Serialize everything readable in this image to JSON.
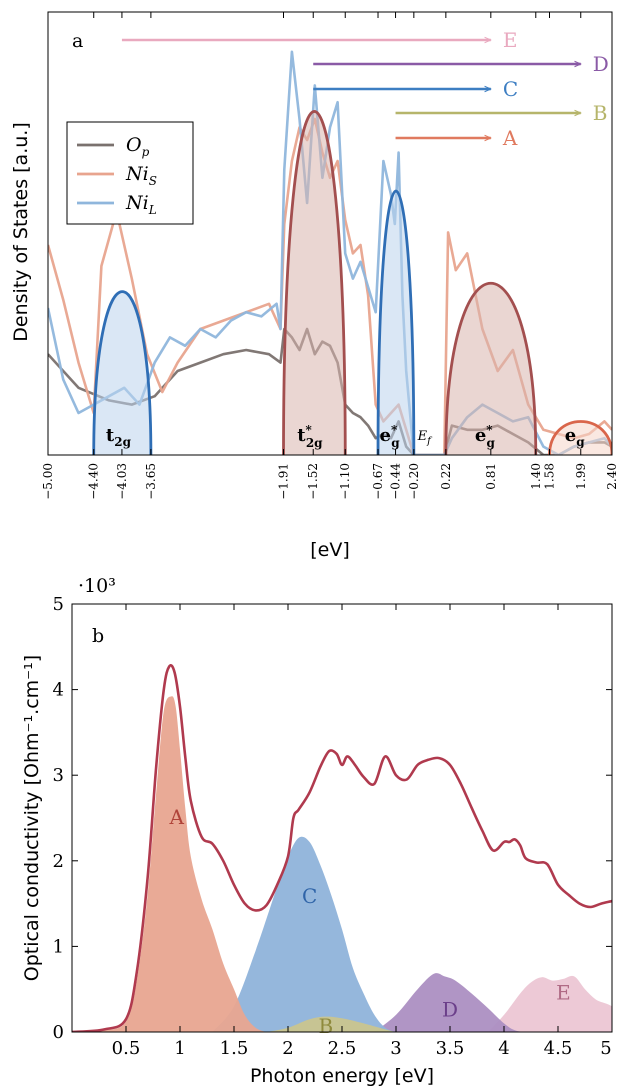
{
  "chart_data": [
    {
      "type": "area",
      "panel_label": "a",
      "xlabel": "[eV]",
      "ylabel": "Density of States [a.u.]",
      "xlim": [
        -5.0,
        2.4
      ],
      "y_ticks_shown": false,
      "grid": false,
      "legend": {
        "position": "left",
        "entries": [
          {
            "name": "O_p",
            "color": "#7a716e"
          },
          {
            "name": "Ni_S",
            "color": "#e8a48e"
          },
          {
            "name": "Ni_L",
            "color": "#8fb6dc"
          }
        ]
      },
      "x_tick_labels": [
        "−5.00",
        "−4.40",
        "−4.03",
        "−3.65",
        "−1.91",
        "−1.52",
        "−1.10",
        "−0.67",
        "−0.44",
        "−0.20",
        "0.22",
        "0.81",
        "1.40",
        "1.58",
        "1.99",
        "2.40"
      ],
      "x_tick_values": [
        -5.0,
        -4.4,
        -4.03,
        -3.65,
        -1.91,
        -1.52,
        -1.1,
        -0.67,
        -0.44,
        -0.2,
        0.22,
        0.81,
        1.4,
        1.58,
        1.99,
        2.4
      ],
      "series": [
        {
          "name": "O_p",
          "color": "#7a716e",
          "x": [
            -5.0,
            -4.6,
            -4.2,
            -3.9,
            -3.6,
            -3.3,
            -3.0,
            -2.7,
            -2.4,
            -2.1,
            -1.95,
            -1.9,
            -1.8,
            -1.7,
            -1.6,
            -1.5,
            -1.4,
            -1.3,
            -1.2,
            -1.1,
            -1.0,
            -0.9,
            -0.8,
            -0.7,
            -0.6,
            -0.5,
            -0.4,
            -0.3,
            -0.2,
            -0.1,
            0.0,
            0.2,
            0.3,
            0.5,
            0.7,
            0.9,
            1.1,
            1.3,
            1.5,
            1.7,
            1.9,
            2.1,
            2.3,
            2.4
          ],
          "y": [
            0.24,
            0.16,
            0.13,
            0.12,
            0.14,
            0.2,
            0.22,
            0.24,
            0.25,
            0.24,
            0.22,
            0.3,
            0.28,
            0.25,
            0.3,
            0.24,
            0.27,
            0.26,
            0.22,
            0.12,
            0.1,
            0.09,
            0.07,
            0.04,
            0.05,
            0.04,
            0.08,
            0.02,
            0.0,
            0.0,
            0.0,
            0.0,
            0.07,
            0.06,
            0.06,
            0.07,
            0.05,
            0.03,
            0.0,
            0.0,
            0.02,
            0.03,
            0.03,
            0.02
          ]
        },
        {
          "name": "Ni_S",
          "color": "#e8a48e",
          "x": [
            -5.0,
            -4.8,
            -4.6,
            -4.4,
            -4.3,
            -4.1,
            -3.9,
            -3.7,
            -3.5,
            -3.3,
            -3.0,
            -2.7,
            -2.4,
            -2.1,
            -1.95,
            -1.9,
            -1.8,
            -1.7,
            -1.6,
            -1.5,
            -1.4,
            -1.3,
            -1.2,
            -1.1,
            -1.0,
            -0.9,
            -0.8,
            -0.7,
            -0.6,
            -0.5,
            -0.4,
            -0.3,
            -0.2,
            -0.1,
            0.0,
            0.2,
            0.25,
            0.35,
            0.5,
            0.7,
            0.9,
            1.1,
            1.3,
            1.5,
            1.7,
            1.9,
            2.1,
            2.3,
            2.4
          ],
          "y": [
            0.5,
            0.37,
            0.22,
            0.1,
            0.45,
            0.58,
            0.42,
            0.24,
            0.15,
            0.22,
            0.3,
            0.32,
            0.34,
            0.36,
            0.3,
            0.55,
            0.7,
            0.78,
            0.75,
            0.8,
            0.72,
            0.66,
            0.7,
            0.56,
            0.48,
            0.5,
            0.38,
            0.12,
            0.08,
            0.1,
            0.12,
            0.06,
            0.0,
            0.0,
            0.0,
            0.0,
            0.53,
            0.44,
            0.48,
            0.3,
            0.2,
            0.25,
            0.12,
            0.06,
            0.05,
            0.04,
            0.05,
            0.08,
            0.06
          ]
        },
        {
          "name": "Ni_L",
          "color": "#8fb6dc",
          "x": [
            -5.0,
            -4.8,
            -4.6,
            -4.4,
            -4.2,
            -4.0,
            -3.8,
            -3.6,
            -3.4,
            -3.2,
            -3.0,
            -2.8,
            -2.6,
            -2.4,
            -2.2,
            -2.0,
            -1.95,
            -1.9,
            -1.8,
            -1.7,
            -1.6,
            -1.5,
            -1.4,
            -1.3,
            -1.2,
            -1.1,
            -1.0,
            -0.9,
            -0.8,
            -0.7,
            -0.6,
            -0.5,
            -0.45,
            -0.4,
            -0.35,
            -0.3,
            -0.2,
            0.0,
            0.2,
            0.3,
            0.5,
            0.7,
            0.9,
            1.1,
            1.3,
            1.5,
            1.7,
            1.9,
            2.1,
            2.3,
            2.4
          ],
          "y": [
            0.35,
            0.18,
            0.1,
            0.12,
            0.14,
            0.16,
            0.12,
            0.22,
            0.28,
            0.26,
            0.3,
            0.28,
            0.32,
            0.34,
            0.33,
            0.36,
            0.3,
            0.68,
            0.96,
            0.8,
            0.6,
            0.88,
            0.66,
            0.78,
            0.84,
            0.48,
            0.42,
            0.46,
            0.4,
            0.34,
            0.7,
            0.62,
            0.55,
            0.72,
            0.38,
            0.2,
            0.0,
            0.0,
            0.0,
            0.04,
            0.09,
            0.12,
            0.1,
            0.08,
            0.09,
            0.02,
            0.0,
            0.02,
            0.03,
            0.04,
            0.02
          ]
        }
      ],
      "bands": [
        {
          "label": "t_2g",
          "center": -4.03,
          "range": [
            -4.4,
            -3.65
          ],
          "height": 0.39,
          "color": "#2f6eb5",
          "fill": "#bcd3ec"
        },
        {
          "label": "t*_2g",
          "center": -1.52,
          "range": [
            -1.91,
            -1.1
          ],
          "height": 0.82,
          "color": "#a34f4f",
          "fill": "#d9b5ad"
        },
        {
          "label": "e*_g",
          "center": -0.44,
          "range": [
            -0.67,
            -0.2
          ],
          "height": 0.63,
          "color": "#2f6eb5",
          "fill": "#bcd3ec"
        },
        {
          "label": "e*_g",
          "center": 0.81,
          "range": [
            0.22,
            1.4
          ],
          "height": 0.41,
          "color": "#a34f4f",
          "fill": "#d9b5ad"
        },
        {
          "label": "e_g",
          "center": 1.99,
          "range": [
            1.58,
            2.4
          ],
          "height": 0.08,
          "color": "#d9664b",
          "fill": "#f6d6c8"
        }
      ],
      "fermi_label": "E_f",
      "transitions": [
        {
          "label": "E",
          "from": -4.03,
          "to": 0.81,
          "color": "#e9a9bf"
        },
        {
          "label": "D",
          "from": -1.52,
          "to": 1.99,
          "color": "#8a5aa6"
        },
        {
          "label": "C",
          "from": -1.52,
          "to": 0.81,
          "color": "#3d7ec2"
        },
        {
          "label": "B",
          "from": -0.44,
          "to": 1.99,
          "color": "#b6b56b"
        },
        {
          "label": "A",
          "from": -0.44,
          "to": 0.81,
          "color": "#e07a5f"
        }
      ]
    },
    {
      "type": "area",
      "panel_label": "b",
      "xlabel": "Photon energy [eV]",
      "ylabel": "Optical conductivity [Ohm⁻¹.cm⁻¹]",
      "y_multiplier": "·10³",
      "xlim": [
        0,
        5
      ],
      "ylim": [
        0,
        5
      ],
      "x_ticks": [
        0.5,
        1,
        1.5,
        2,
        2.5,
        3,
        3.5,
        4,
        4.5,
        5
      ],
      "x_tick_labels": [
        "0.5",
        "1",
        "1.5",
        "2",
        "2.5",
        "3",
        "3.5",
        "4",
        "4.5",
        "5"
      ],
      "y_ticks": [
        0,
        1,
        2,
        3,
        4,
        5
      ],
      "y_tick_labels": [
        "0",
        "1",
        "2",
        "3",
        "4",
        "5"
      ],
      "grid": false,
      "total": {
        "color": "#b03a4e",
        "x": [
          0.0,
          0.3,
          0.5,
          0.6,
          0.7,
          0.78,
          0.85,
          0.9,
          0.95,
          1.0,
          1.05,
          1.1,
          1.2,
          1.3,
          1.4,
          1.5,
          1.6,
          1.7,
          1.8,
          1.9,
          2.0,
          2.05,
          2.1,
          2.2,
          2.3,
          2.38,
          2.45,
          2.5,
          2.55,
          2.62,
          2.7,
          2.8,
          2.9,
          3.0,
          3.1,
          3.2,
          3.3,
          3.4,
          3.5,
          3.6,
          3.7,
          3.8,
          3.9,
          4.0,
          4.05,
          4.1,
          4.15,
          4.2,
          4.3,
          4.4,
          4.5,
          4.6,
          4.7,
          4.8,
          4.9,
          5.0
        ],
        "y": [
          0.0,
          0.03,
          0.15,
          0.7,
          1.8,
          3.1,
          4.0,
          4.27,
          4.2,
          3.8,
          3.2,
          2.7,
          2.28,
          2.2,
          2.0,
          1.72,
          1.5,
          1.42,
          1.48,
          1.72,
          2.05,
          2.5,
          2.6,
          2.8,
          3.1,
          3.28,
          3.25,
          3.12,
          3.22,
          3.12,
          2.98,
          2.9,
          3.22,
          3.0,
          2.95,
          3.12,
          3.18,
          3.2,
          3.12,
          2.9,
          2.62,
          2.35,
          2.12,
          2.22,
          2.22,
          2.25,
          2.18,
          2.03,
          1.98,
          1.96,
          1.72,
          1.6,
          1.5,
          1.46,
          1.5,
          1.53
        ]
      },
      "series": [
        {
          "name": "A",
          "color": "#e8a590",
          "x": [
            0.0,
            0.3,
            0.5,
            0.6,
            0.7,
            0.78,
            0.85,
            0.92,
            0.96,
            1.0,
            1.05,
            1.1,
            1.2,
            1.3,
            1.4,
            1.5,
            1.6,
            1.7,
            1.8
          ],
          "y": [
            0.0,
            0.02,
            0.12,
            0.6,
            1.6,
            2.8,
            3.75,
            3.92,
            3.8,
            3.3,
            2.6,
            2.05,
            1.55,
            1.2,
            0.8,
            0.5,
            0.2,
            0.05,
            0.0
          ]
        },
        {
          "name": "B",
          "color": "#c9c48e",
          "x": [
            1.8,
            2.0,
            2.2,
            2.35,
            2.5,
            2.7,
            2.9,
            3.0
          ],
          "y": [
            0.0,
            0.05,
            0.15,
            0.18,
            0.16,
            0.1,
            0.03,
            0.0
          ]
        },
        {
          "name": "C",
          "color": "#8fb3da",
          "x": [
            1.3,
            1.5,
            1.7,
            1.9,
            2.0,
            2.1,
            2.2,
            2.3,
            2.4,
            2.5,
            2.6,
            2.7,
            2.8,
            2.9,
            3.0
          ],
          "y": [
            0.0,
            0.3,
            0.95,
            1.7,
            2.05,
            2.27,
            2.22,
            1.95,
            1.6,
            1.2,
            0.75,
            0.45,
            0.2,
            0.05,
            0.0
          ]
        },
        {
          "name": "D",
          "color": "#ac8fc2",
          "x": [
            2.8,
            3.0,
            3.2,
            3.35,
            3.45,
            3.55,
            3.7,
            3.85,
            4.0,
            4.1,
            4.2
          ],
          "y": [
            0.0,
            0.2,
            0.5,
            0.68,
            0.65,
            0.6,
            0.45,
            0.28,
            0.1,
            0.02,
            0.0
          ]
        },
        {
          "name": "E",
          "color": "#ecc6d4",
          "x": [
            3.85,
            4.0,
            4.15,
            4.25,
            4.35,
            4.45,
            4.55,
            4.65,
            4.75,
            4.85,
            4.95,
            5.0
          ],
          "y": [
            0.0,
            0.2,
            0.45,
            0.58,
            0.64,
            0.6,
            0.62,
            0.65,
            0.5,
            0.38,
            0.33,
            0.3
          ]
        }
      ],
      "area_labels": [
        {
          "text": "A",
          "x": 0.97,
          "y": 2.5,
          "color": "#b0443a"
        },
        {
          "text": "C",
          "x": 2.2,
          "y": 1.58,
          "color": "#2f64a8"
        },
        {
          "text": "B",
          "x": 2.35,
          "y": 0.06,
          "color": "#8f8a3d"
        },
        {
          "text": "D",
          "x": 3.5,
          "y": 0.25,
          "color": "#6b3f8a"
        },
        {
          "text": "E",
          "x": 4.55,
          "y": 0.45,
          "color": "#b06a85"
        }
      ]
    }
  ]
}
